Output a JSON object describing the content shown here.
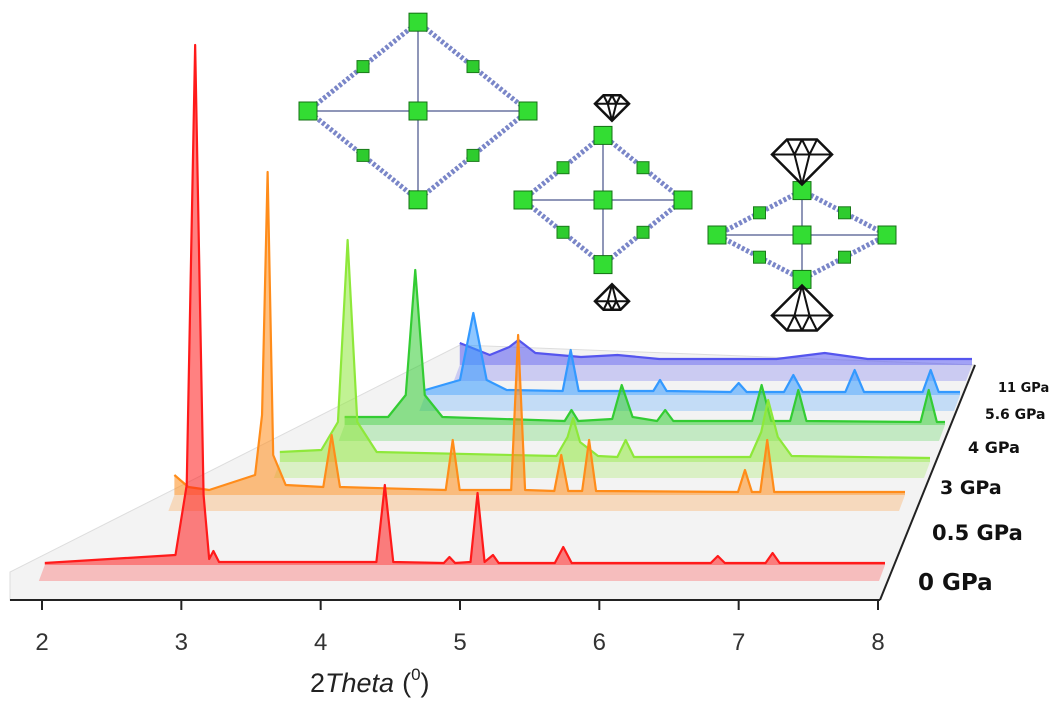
{
  "chart_data": {
    "type": "waterfall",
    "xlabel": [
      "2",
      "Theta",
      "(",
      "0",
      ")"
    ],
    "xlim": [
      2,
      8
    ],
    "xticks": [
      2,
      3,
      4,
      5,
      6,
      7,
      8
    ],
    "series": [
      {
        "name": "0 GPa",
        "color": "#ff1a1a",
        "x": [
          2.02,
          2.95,
          3.03,
          3.09,
          3.15,
          3.19,
          3.22,
          3.26,
          4.38,
          4.44,
          4.5,
          4.86,
          4.9,
          4.94,
          5.05,
          5.1,
          5.15,
          5.21,
          5.25,
          5.65,
          5.71,
          5.77,
          6.76,
          6.81,
          6.86,
          7.15,
          7.2,
          7.25,
          8.0
        ],
        "values": [
          2,
          10,
          80,
          520,
          70,
          6,
          14,
          3,
          3,
          80,
          3,
          2,
          8,
          2,
          3,
          72,
          3,
          10,
          2,
          2,
          18,
          2,
          2,
          9,
          2,
          2,
          12,
          2,
          2
        ]
      },
      {
        "name": "0.5 GPa",
        "color": "#ff8c1a",
        "x": [
          2.75,
          2.85,
          3.0,
          3.33,
          3.38,
          3.42,
          3.46,
          3.55,
          3.82,
          3.88,
          3.94,
          4.7,
          4.75,
          4.8,
          5.17,
          5.22,
          5.27,
          5.48,
          5.53,
          5.58,
          5.68,
          5.73,
          5.78,
          6.8,
          6.85,
          6.9,
          6.96,
          7.01,
          7.06,
          8.0
        ],
        "values": [
          20,
          8,
          5,
          20,
          80,
          323,
          40,
          10,
          8,
          60,
          8,
          5,
          55,
          5,
          5,
          160,
          5,
          4,
          40,
          4,
          4,
          55,
          4,
          3,
          25,
          3,
          3,
          55,
          3,
          3
        ]
      },
      {
        "name": "3 GPa",
        "color": "#8ee83a",
        "x": [
          3.3,
          3.6,
          3.72,
          3.79,
          3.86,
          4.0,
          5.3,
          5.38,
          5.42,
          5.47,
          5.6,
          5.74,
          5.8,
          5.86,
          6.7,
          6.78,
          6.83,
          6.9,
          7.0,
          8.0
        ],
        "values": [
          10,
          12,
          40,
          222,
          40,
          10,
          6,
          25,
          44,
          20,
          6,
          5,
          22,
          5,
          5,
          30,
          62,
          25,
          6,
          4
        ]
      },
      {
        "name": "4 GPa",
        "color": "#33cc33",
        "x": [
          3.58,
          3.9,
          4.03,
          4.1,
          4.17,
          4.3,
          5.2,
          5.25,
          5.3,
          5.55,
          5.62,
          5.7,
          5.88,
          5.94,
          6.0,
          6.58,
          6.65,
          6.72,
          6.86,
          6.92,
          6.98,
          7.82,
          7.88,
          7.94,
          8.0
        ],
        "values": [
          8,
          8,
          30,
          155,
          30,
          8,
          4,
          15,
          4,
          6,
          40,
          8,
          4,
          15,
          4,
          4,
          40,
          4,
          4,
          35,
          4,
          3,
          35,
          3,
          3
        ]
      },
      {
        "name": "5.6 GPa",
        "color": "#3399ff",
        "x": [
          3.99,
          4.25,
          4.35,
          4.45,
          4.6,
          5.02,
          5.08,
          5.14,
          5.7,
          5.75,
          5.8,
          6.28,
          6.34,
          6.4,
          6.68,
          6.75,
          6.82,
          7.14,
          7.21,
          7.28,
          7.72,
          7.78,
          7.84,
          8.0
        ],
        "values": [
          5,
          15,
          82,
          15,
          5,
          4,
          45,
          4,
          4,
          15,
          4,
          3,
          12,
          3,
          3,
          20,
          3,
          3,
          25,
          3,
          3,
          25,
          3,
          3
        ]
      },
      {
        "name": "11 GPa",
        "color": "#5555ee",
        "x": [
          4.07,
          4.3,
          4.45,
          4.52,
          4.65,
          5.0,
          5.28,
          5.6,
          6.5,
          6.87,
          7.2,
          8.0
        ],
        "values": [
          22,
          10,
          18,
          25,
          12,
          8,
          10,
          6,
          6,
          12,
          6,
          6
        ]
      }
    ]
  }
}
